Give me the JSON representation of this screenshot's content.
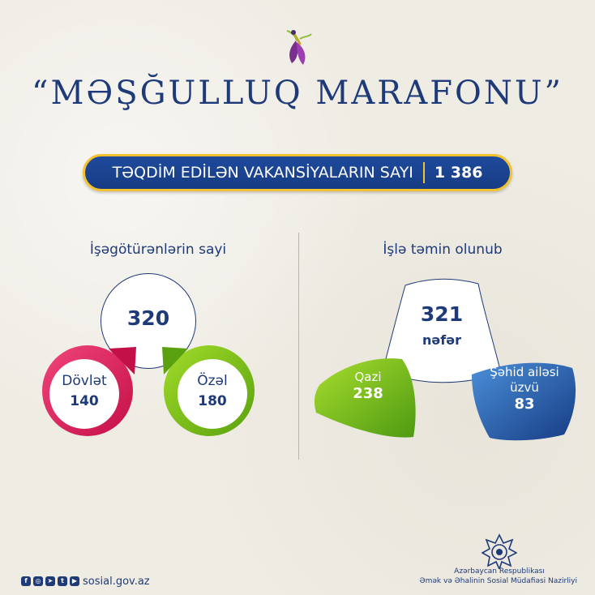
{
  "title": "“MƏŞĞULLUQ MARAFONU”",
  "banner": {
    "label": "TƏQDİM EDİLƏN VAKANSİYALARIN SAYI",
    "value": "1 386"
  },
  "employers": {
    "heading": "İşəgötürənlərin sayi",
    "total": "320",
    "state": {
      "label": "Dövlət",
      "value": "140"
    },
    "private": {
      "label": "Özəl",
      "value": "180"
    }
  },
  "placed": {
    "heading": "İşlə təmin olunub",
    "total": "321",
    "unit": "nəfər",
    "gazi": {
      "label": "Qazi",
      "value": "238"
    },
    "martyr": {
      "label_line1": "Şəhid ailəsi",
      "label_line2": "üzvü",
      "value": "83"
    }
  },
  "footer": {
    "icons": [
      "facebook-icon",
      "instagram-icon",
      "telegram-icon",
      "twitter-icon",
      "youtube-icon"
    ],
    "site": "sosial.gov.az",
    "ministry_line1": "Azərbaycan Respublikası",
    "ministry_line2": "Əmək və Əhalinin Sosial Müdafiəsi Nazirliyi"
  },
  "colors": {
    "navy": "#1e3a78",
    "gold": "#f2c230",
    "red": "#e0245e",
    "green": "#7cc520",
    "blue": "#2e6bb8"
  }
}
